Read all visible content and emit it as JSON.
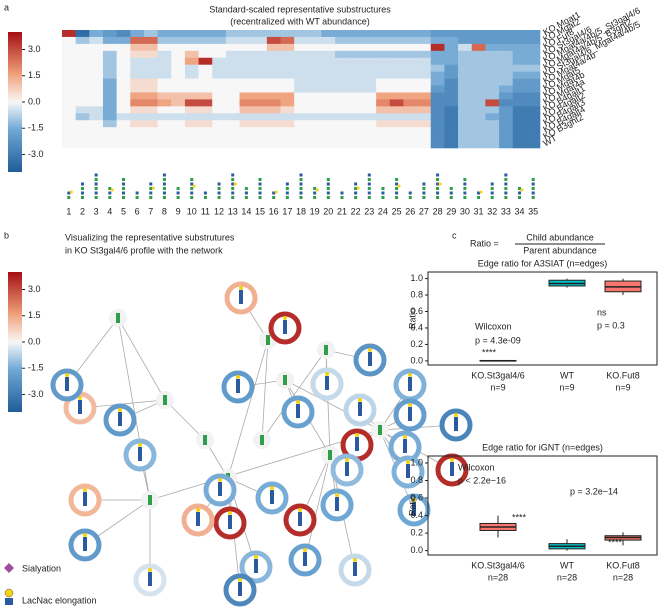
{
  "panel_labels": [
    "a",
    "b",
    "c"
  ],
  "legend": [
    "Sialyation",
    "LacNac elongation"
  ],
  "ratio": {
    "label": "Ratio =",
    "numerator": "Child abundance",
    "denominator": "Parent abundance"
  },
  "chart_data": [
    {
      "type": "heatmap",
      "title": [
        "Standard-scaled representative substructures",
        "(recentralized with WT abundance)"
      ],
      "rows": [
        "KO Mgat1",
        "KO Mgat2",
        "KO Fut8",
        "KO St3gal4/6",
        "KO Mgat4a/4b/5_St3gal4/6",
        "KO Mgat4a/4b/5_B3gnt2",
        "KO St3gal4/6_Mgat4a/4b/5",
        "KO Mgat4a/4b",
        "KO Mgat5",
        "KO Mgat4b",
        "KO Mgat4a",
        "KO B4galt1",
        "KO B4galt2",
        "KO B4galt3",
        "KO B4galt4",
        "KO B3gnt2",
        "WT"
      ],
      "row_colors": [
        "#000000",
        "#000000",
        "#000000",
        "#b03a2e",
        "#b03a2e",
        "#b03a2e",
        "#b03a2e",
        "#e0731c",
        "#e0731c",
        "#e0731c",
        "#e0731c",
        "#e6a817",
        "#e6a817",
        "#e6a817",
        "#e6a817",
        "#e6a817",
        "#e6a817"
      ],
      "categories": [
        1,
        2,
        3,
        4,
        5,
        6,
        7,
        8,
        9,
        10,
        11,
        12,
        13,
        14,
        15,
        16,
        17,
        18,
        19,
        20,
        21,
        22,
        23,
        24,
        25,
        26,
        27,
        28,
        29,
        30,
        31,
        32,
        33,
        34,
        35
      ],
      "values": [
        [
          3.5,
          -3.5,
          -1.5,
          -2,
          -2.5,
          -1.5,
          -1,
          -1.5,
          -1.5,
          -1.5,
          -1.5,
          -1.5,
          -1,
          -1,
          -1,
          -1,
          -1,
          -1,
          -1,
          -1.5,
          -1.5,
          -1.5,
          -1.5,
          -1.5,
          -1.5,
          -1.5,
          -1.5,
          -2,
          -2,
          -2,
          -2,
          -2,
          -2,
          -2,
          -2
        ],
        [
          0,
          -1,
          -0.5,
          -1.5,
          -1.5,
          2.5,
          2.5,
          -1,
          -1,
          -1,
          -1,
          -1,
          -0.5,
          -0.5,
          -0.5,
          3,
          2.5,
          -0.5,
          -0.5,
          -0.5,
          -1,
          -1,
          -1,
          -1,
          -1,
          -1,
          -1,
          -1.5,
          -1.5,
          -2,
          -2,
          -2,
          -2,
          -2,
          -2
        ],
        [
          0,
          0,
          0,
          0,
          0,
          1,
          1,
          0,
          0,
          0,
          0,
          0,
          0,
          0,
          0,
          1,
          1,
          0,
          0,
          0,
          0,
          0,
          0,
          0,
          0,
          0,
          0,
          3.5,
          -1.5,
          -0.5,
          2.5,
          -1.5,
          -1.5,
          -1.5,
          -1.5
        ],
        [
          0,
          0,
          0,
          -1,
          0,
          0.5,
          0.5,
          -0.5,
          0,
          1,
          0,
          0,
          -0.5,
          -0.5,
          -0.5,
          -0.5,
          -0.5,
          -0.5,
          -0.5,
          -0.5,
          -1,
          -1,
          -1,
          -1,
          -1,
          -1,
          -1,
          -1.5,
          -1.5,
          -1,
          -1,
          -1,
          -1,
          -1.5,
          -1.5
        ],
        [
          0,
          0,
          0,
          -1,
          0,
          -0.5,
          -0.5,
          -0.5,
          0,
          1.5,
          3.5,
          -0.5,
          -0.5,
          -0.5,
          -0.5,
          -0.5,
          -0.5,
          -0.5,
          -0.5,
          -0.5,
          -0.5,
          -0.5,
          -0.5,
          -0.5,
          -0.5,
          -0.5,
          -0.5,
          -1.5,
          -1.5,
          -1,
          -1,
          -1,
          -1,
          -1.5,
          -1.5
        ],
        [
          0,
          0,
          0,
          -1,
          0,
          -0.5,
          -0.5,
          -0.5,
          0,
          -0.5,
          0,
          -0.5,
          -0.5,
          -0.5,
          -0.5,
          -0.5,
          -0.5,
          -0.5,
          -0.5,
          -0.5,
          -0.5,
          -0.5,
          -0.5,
          -0.5,
          -0.5,
          -0.5,
          -0.5,
          -1,
          -2,
          -1,
          -1,
          -1,
          -1,
          -1,
          -1
        ],
        [
          0,
          0,
          0,
          -1,
          0,
          -0.5,
          -0.5,
          -0.5,
          0,
          -0.5,
          0,
          -0.5,
          -0.5,
          -0.5,
          -0.5,
          -0.5,
          -0.5,
          -0.5,
          -0.5,
          -0.5,
          -0.5,
          -0.5,
          -0.5,
          -0.5,
          -0.5,
          -0.5,
          -0.5,
          -1.5,
          -2,
          -1,
          -1,
          -1,
          -1,
          -1.5,
          -1.5
        ],
        [
          0,
          0,
          0,
          -1.5,
          0,
          0.5,
          0.5,
          0,
          0,
          0,
          0,
          0,
          0,
          0,
          0,
          0,
          0,
          -0.5,
          -0.5,
          -0.5,
          -0.5,
          -0.5,
          -0.5,
          0,
          0,
          0,
          0,
          -1.5,
          -2.5,
          -1,
          -1,
          -1,
          -1,
          -2,
          -2
        ],
        [
          0,
          0,
          0,
          -1.5,
          0,
          0.5,
          0.5,
          0,
          0,
          0,
          0,
          0,
          0,
          0,
          0,
          0,
          0,
          -0.5,
          -0.5,
          -0.5,
          -0.5,
          -0.5,
          -0.5,
          0,
          0,
          0,
          0,
          -2,
          -2.5,
          -1,
          -1,
          -1,
          -1.5,
          -2,
          -2
        ],
        [
          0,
          0,
          0,
          -1.5,
          0,
          1.5,
          1.5,
          1,
          1,
          1,
          1,
          0,
          0,
          1.5,
          1.5,
          1.5,
          1.5,
          0,
          0,
          0,
          0,
          0,
          0,
          1.5,
          1.5,
          1.5,
          1.5,
          -2.5,
          -2.5,
          -1,
          -1,
          -1,
          -2,
          -2.5,
          -2.5
        ],
        [
          0,
          0,
          0,
          -1.5,
          0,
          2,
          2,
          1.5,
          1,
          3,
          3,
          0,
          0,
          2,
          2,
          2,
          1.5,
          0,
          0,
          0,
          0,
          0,
          0,
          2,
          3,
          2,
          2,
          -2.5,
          -2.5,
          -1,
          -1,
          3,
          -2.5,
          -2.5,
          -2.5
        ],
        [
          0,
          -0.5,
          -0.5,
          -1.5,
          0,
          0.5,
          0.5,
          0,
          0,
          0.5,
          0.5,
          0,
          0,
          1,
          1,
          1,
          0.5,
          0,
          0,
          0,
          0,
          0,
          0,
          1,
          1,
          1,
          1,
          -2.5,
          -3,
          -1,
          -1,
          -1,
          -2,
          -3,
          -3
        ],
        [
          0,
          -1,
          -0.5,
          -1.5,
          -0.5,
          -0.5,
          -0.5,
          -0.5,
          -0.5,
          -0.5,
          -0.5,
          -0.5,
          -0.5,
          -0.5,
          -0.5,
          -0.5,
          -0.5,
          -0.5,
          -0.5,
          -0.5,
          -0.5,
          -0.5,
          -0.5,
          -0.5,
          -0.5,
          -0.5,
          -0.5,
          -2.5,
          -3,
          -1,
          -1,
          -1.5,
          -2,
          -3,
          -3
        ],
        [
          0,
          0,
          0,
          -1,
          0,
          0.5,
          0.5,
          0,
          0,
          0.5,
          0.5,
          0,
          0,
          0.5,
          0.5,
          0.5,
          0.5,
          0,
          0,
          0,
          0,
          0,
          0,
          0.5,
          0.5,
          0.5,
          0.5,
          -2.5,
          -3,
          -1,
          -1,
          -1,
          -2,
          -3,
          -3
        ],
        [
          0,
          0,
          0,
          0,
          0,
          0,
          0,
          0,
          0,
          0,
          0,
          0,
          0,
          0,
          0,
          0,
          0,
          0,
          0,
          0,
          0,
          0,
          0,
          0,
          0,
          0,
          0,
          -2.5,
          -3,
          -1,
          -1,
          -1,
          -2,
          -3,
          -3
        ],
        [
          0,
          0,
          0,
          0,
          0,
          0,
          0,
          0,
          0,
          0,
          0,
          0,
          0,
          0,
          0,
          0,
          0,
          0,
          0,
          0,
          0,
          0,
          0,
          0,
          0,
          0,
          0,
          -2.5,
          -3,
          -1,
          -1,
          -1,
          -2,
          -3,
          -3
        ],
        [
          0,
          0,
          0,
          0,
          0,
          0,
          0,
          0,
          0,
          0,
          0,
          0,
          0,
          0,
          0,
          0,
          0,
          0,
          0,
          0,
          0,
          0,
          0,
          0,
          0,
          0,
          0,
          -2.5,
          -3,
          -1,
          -1,
          -1,
          -2,
          -3,
          -3
        ]
      ],
      "colorbar": {
        "lim": [
          -4,
          4
        ],
        "ticks": [
          {
            "value": 3,
            "label": "3.0"
          },
          {
            "value": 1.5,
            "label": "1.5"
          },
          {
            "value": 0,
            "label": "0.0"
          },
          {
            "value": -1.5,
            "label": "-1.5"
          },
          {
            "value": -3,
            "label": "-3.0"
          }
        ]
      }
    },
    {
      "type": "network",
      "title": [
        "Visualizing the representative substrutures",
        "in KO St3gal4/6 profile with the network"
      ],
      "values": [
        1.3,
        3.5,
        -0.6,
        -2,
        -2.2,
        -1.4,
        3.5,
        -1.9,
        -2.7,
        -1.5,
        -0.7,
        -1.8,
        -1.2,
        -1.4,
        3.5,
        -1.6,
        -1.6,
        3.5,
        -1.8,
        -0.6,
        -1.3,
        3.5,
        -2.6,
        1.3,
        -1.3,
        -2,
        1.1,
        -2,
        1.2,
        -2,
        -0.4,
        -1.5,
        -1.5
      ],
      "colorbar": {
        "lim": [
          -4,
          4
        ],
        "ticks": [
          {
            "value": 3,
            "label": "3.0"
          },
          {
            "value": 1.5,
            "label": "1.5"
          },
          {
            "value": 0,
            "label": "0.0"
          },
          {
            "value": -1.5,
            "label": "-1.5"
          },
          {
            "value": -3,
            "label": "-3.0"
          }
        ]
      }
    },
    {
      "type": "box",
      "title": "Edge ratio for A3SIAT (n=edges)",
      "y_label": "Ratio",
      "categories": [
        "KO.St3gal4/6",
        "WT",
        "KO.Fut8"
      ],
      "n_labels": [
        "n=9",
        "n=9",
        "n=9"
      ],
      "colors": [
        "#f8766d",
        "#00bfc4",
        "#f8766d"
      ],
      "boxes": [
        {
          "whislo": 0,
          "q1": 0,
          "median": 0,
          "q3": 0.005,
          "whishi": 0.01
        },
        {
          "whislo": 0.89,
          "q1": 0.91,
          "median": 0.94,
          "q3": 0.98,
          "whishi": 1.0
        },
        {
          "whislo": 0.8,
          "q1": 0.84,
          "median": 0.9,
          "q3": 0.97,
          "whishi": 1.0
        }
      ],
      "ylim": [
        -0.05,
        1.08
      ],
      "yticks": [
        {
          "value": 0,
          "label": "0.0"
        },
        {
          "value": 0.2,
          "label": "0.2"
        },
        {
          "value": 0.4,
          "label": "0.4"
        },
        {
          "value": 0.6,
          "label": "0.6"
        },
        {
          "value": 0.8,
          "label": "0.8"
        },
        {
          "value": 1,
          "label": "1.0"
        }
      ],
      "annotations": [
        "Wilcoxon",
        "p = 4.3e-09",
        "****",
        "ns",
        "p = 0.3"
      ]
    },
    {
      "type": "box",
      "title": "Edge ratio for iGNT (n=edges)",
      "y_label": "Ratio",
      "categories": [
        "KO.St3gal4/6",
        "WT",
        "KO.Fut8"
      ],
      "n_labels": [
        "n=28",
        "n=28",
        "n=28"
      ],
      "colors": [
        "#f8766d",
        "#00bfc4",
        "#f8766d"
      ],
      "boxes": [
        {
          "whislo": 0.15,
          "q1": 0.23,
          "median": 0.27,
          "q3": 0.31,
          "whishi": 0.4
        },
        {
          "whislo": 0,
          "q1": 0.02,
          "median": 0.05,
          "q3": 0.08,
          "whishi": 0.13
        },
        {
          "whislo": 0.06,
          "q1": 0.12,
          "median": 0.15,
          "q3": 0.17,
          "whishi": 0.21
        }
      ],
      "ylim": [
        -0.05,
        1.08
      ],
      "yticks": [
        {
          "value": 0,
          "label": "0.0"
        },
        {
          "value": 0.2,
          "label": "0.2"
        },
        {
          "value": 0.4,
          "label": "0.4"
        },
        {
          "value": 0.6,
          "label": "0.6"
        },
        {
          "value": 0.8,
          "label": "0.8"
        },
        {
          "value": 1,
          "label": "1.0"
        }
      ],
      "annotations": [
        "Wilcoxon",
        "p < 2.2e−16",
        "p = 3.2e−14",
        "****",
        "****"
      ]
    }
  ]
}
